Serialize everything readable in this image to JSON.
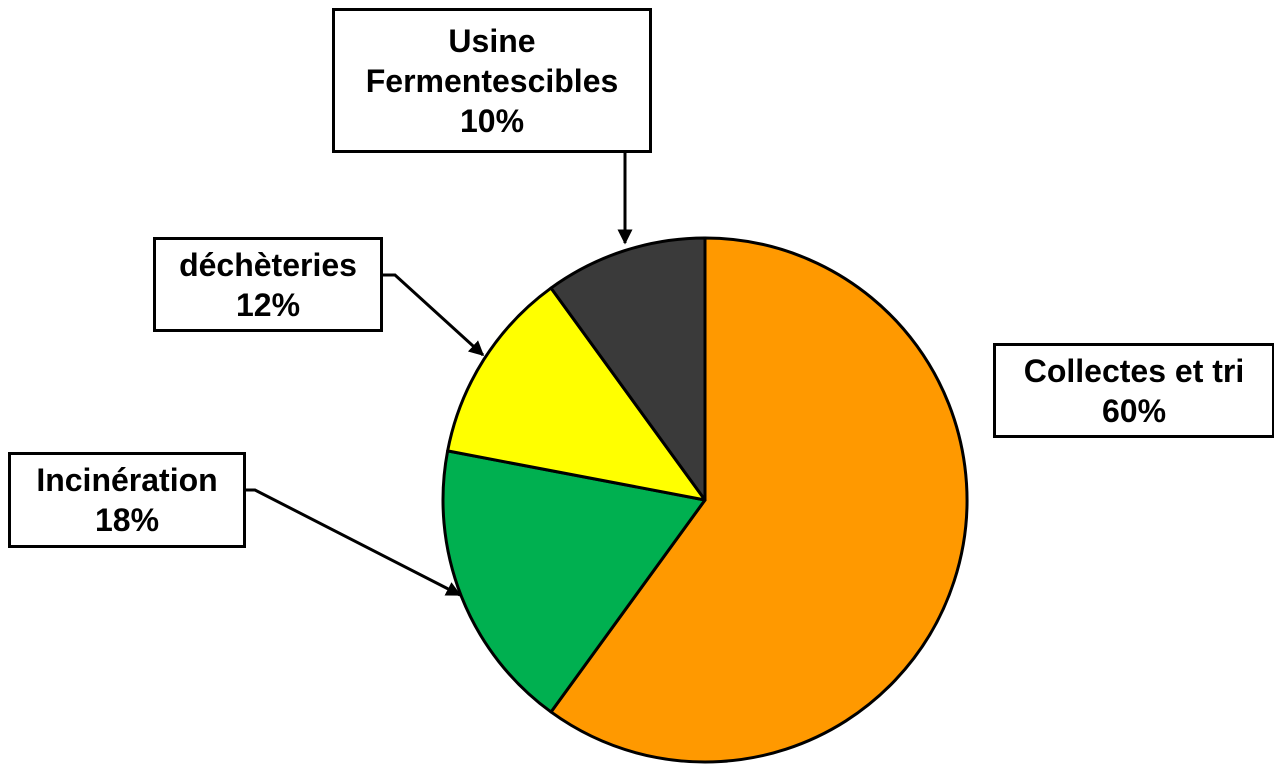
{
  "chart_data": {
    "type": "pie",
    "categories": [
      "Collectes et tri",
      "Incinération",
      "déchèteries",
      "Usine Fermentescibles"
    ],
    "values": [
      60,
      18,
      12,
      10
    ],
    "value_labels": [
      "60%",
      "18%",
      "12%",
      "10%"
    ],
    "colors": [
      "#ff9900",
      "#00b050",
      "#ffff00",
      "#3a3a3a"
    ]
  }
}
